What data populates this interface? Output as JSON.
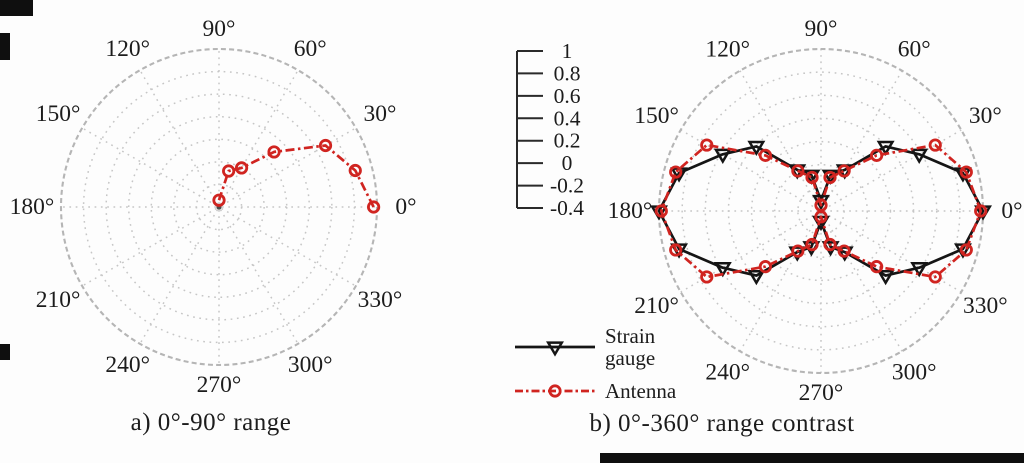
{
  "figure": {
    "captions": {
      "a": "a) 0°-90° range",
      "b": "b) 0°-360° range contrast"
    }
  },
  "colors": {
    "antenna_red": "#d02420",
    "strain_black": "#151515",
    "grid_gray": "#c6c6c6",
    "outer_ring_gray": "#b5b5b5",
    "axis_dark": "#2a2a2a",
    "text": "#1c1c1c"
  },
  "scale_bar": {
    "tick_labels": [
      "1",
      "0.8",
      "0.6",
      "0.4",
      "0.2",
      "0",
      "-0.2",
      "-0.4"
    ],
    "max": 1,
    "min": -0.4,
    "step": 0.2
  },
  "legend": {
    "items": [
      {
        "name": "Strain gauge",
        "label_lines": [
          "Strain",
          "gauge"
        ],
        "marker": "triangle-down",
        "line_style": "solid",
        "color": "#151515"
      },
      {
        "name": "Antenna",
        "label_lines": [
          "Antenna"
        ],
        "marker": "circle",
        "line_style": "dash-dot",
        "color": "#d02420"
      }
    ]
  },
  "chart_data": [
    {
      "id": "a",
      "type": "line",
      "projection": "polar",
      "title": "a) 0°-90° range",
      "angle_tick_labels": [
        "0°",
        "30°",
        "60°",
        "90°",
        "120°",
        "150°",
        "180°",
        "210°",
        "240°",
        "270°",
        "300°",
        "330°"
      ],
      "angle_ticks_deg": [
        0,
        30,
        60,
        90,
        120,
        150,
        180,
        210,
        240,
        270,
        300,
        330
      ],
      "radial_range": [
        -0.4,
        1
      ],
      "radial_rings": [
        -0.2,
        0,
        0.2,
        0.4,
        0.6,
        0.8,
        1
      ],
      "grid": "dotted",
      "series": [
        {
          "name": "Antenna",
          "color": "#d02420",
          "line_style": "dash-dot",
          "marker": "circle",
          "closed": false,
          "angles_deg": [
            0,
            15,
            30,
            45,
            60,
            75,
            90
          ],
          "values": [
            0.97,
            0.85,
            0.69,
            0.29,
            0.0,
            -0.07,
            -0.34
          ]
        }
      ]
    },
    {
      "id": "b",
      "type": "line",
      "projection": "polar",
      "title": "b) 0°-360° range contrast",
      "angle_tick_labels": [
        "0°",
        "30°",
        "60°",
        "90°",
        "120°",
        "150°",
        "180°",
        "210°",
        "240°",
        "270°",
        "300°",
        "330°"
      ],
      "angle_ticks_deg": [
        0,
        30,
        60,
        90,
        120,
        150,
        180,
        210,
        240,
        270,
        300,
        330
      ],
      "radial_range": [
        -0.4,
        1
      ],
      "radial_rings": [
        -0.2,
        0,
        0.2,
        0.4,
        0.6,
        0.8,
        1
      ],
      "grid": "dotted",
      "legend_position": "bottom-left",
      "series": [
        {
          "name": "Strain gauge",
          "color": "#151515",
          "line_style": "solid",
          "marker": "triangle-down",
          "closed": true,
          "angles_deg": [
            0,
            15,
            30,
            45,
            60,
            75,
            90,
            105,
            120,
            135,
            150,
            165,
            180,
            195,
            210,
            225,
            240,
            255,
            270,
            285,
            300,
            315,
            330,
            345
          ],
          "values": [
            1.0,
            0.87,
            0.58,
            0.39,
            0.01,
            -0.08,
            -0.31,
            -0.08,
            0.01,
            0.39,
            0.58,
            0.87,
            1.0,
            0.87,
            0.58,
            0.39,
            0.01,
            -0.08,
            -0.31,
            -0.08,
            0.01,
            0.39,
            0.58,
            0.87
          ]
        },
        {
          "name": "Antenna",
          "color": "#d02420",
          "line_style": "dash-dot",
          "marker": "circle",
          "closed": true,
          "angles_deg": [
            0,
            15,
            30,
            45,
            60,
            75,
            90,
            105,
            120,
            135,
            150,
            165,
            180,
            195,
            210,
            225,
            240,
            255,
            270,
            285,
            300,
            315,
            330,
            345
          ],
          "values": [
            0.98,
            0.9,
            0.74,
            0.28,
            0.0,
            -0.1,
            -0.35,
            -0.1,
            0.0,
            0.28,
            0.74,
            0.9,
            0.98,
            0.9,
            0.74,
            0.28,
            0.0,
            -0.1,
            -0.35,
            -0.1,
            0.0,
            0.28,
            0.74,
            0.9
          ]
        }
      ]
    }
  ]
}
